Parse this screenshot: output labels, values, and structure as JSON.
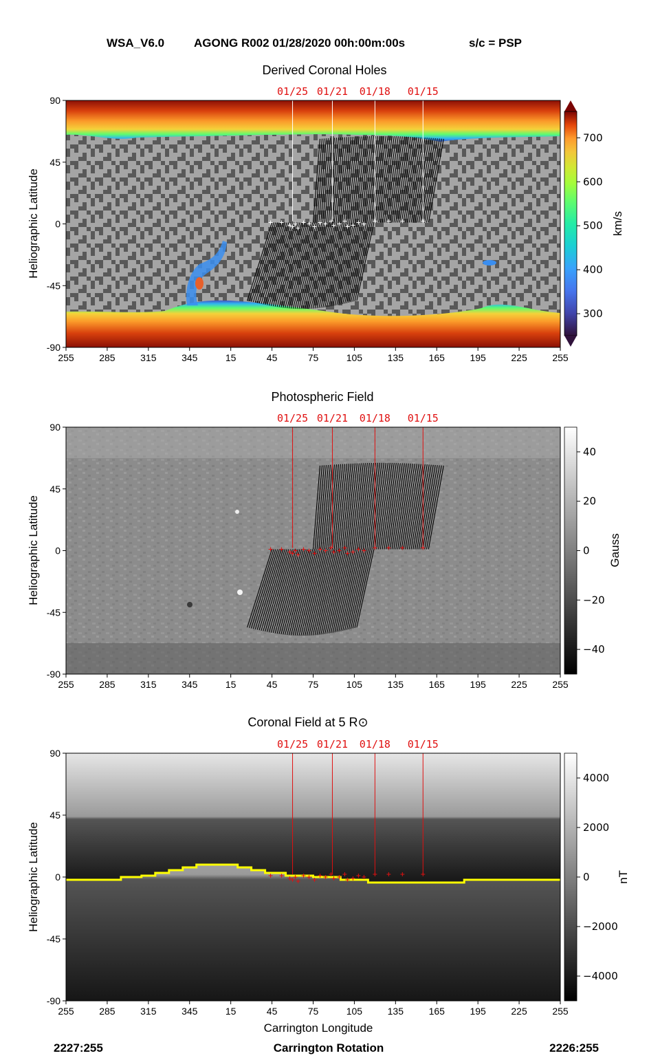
{
  "header": {
    "model": "WSA_V6.0",
    "run": "AGONG R002 01/28/2020 00h:00m:00s",
    "spacecraft": "s/c = PSP"
  },
  "footer": {
    "left_rotation": "2227:255",
    "center_label": "Carrington Rotation",
    "right_rotation": "2226:255"
  },
  "colors": {
    "date_marker": "#e01010",
    "neutral_line": "#ffff00",
    "coronal_hole_light": "#a6a6a6",
    "coronal_hole_dark": "#555555",
    "footpoint_lines": "#000000"
  },
  "chart_data": [
    {
      "type": "heatmap",
      "title": "Derived Coronal Holes",
      "ylabel": "Heliographic Latitude",
      "xlabel": "",
      "x_ticks": [
        "255",
        "285",
        "315",
        "345",
        "15",
        "45",
        "75",
        "105",
        "135",
        "165",
        "195",
        "225",
        "255"
      ],
      "y_ticks": [
        "90",
        "45",
        "0",
        "-45",
        "-90"
      ],
      "ylim": [
        -90,
        90
      ],
      "colorbar": {
        "label": "km/s",
        "ticks": [
          "700",
          "600",
          "500",
          "400",
          "300"
        ],
        "range": [
          250,
          760
        ],
        "colormap": "turbo",
        "extend": "both"
      },
      "date_markers": [
        {
          "label": "01/25",
          "longitude": 60
        },
        {
          "label": "01/21",
          "longitude": 89
        },
        {
          "label": "01/18",
          "longitude": 120
        },
        {
          "label": "01/15",
          "longitude": 155
        }
      ]
    },
    {
      "type": "heatmap",
      "title": "Photospheric Field",
      "ylabel": "Heliographic Latitude",
      "xlabel": "",
      "x_ticks": [
        "255",
        "285",
        "315",
        "345",
        "15",
        "45",
        "75",
        "105",
        "135",
        "165",
        "195",
        "225",
        "255"
      ],
      "y_ticks": [
        "90",
        "45",
        "0",
        "-45",
        "-90"
      ],
      "ylim": [
        -90,
        90
      ],
      "colorbar": {
        "label": "Gauss",
        "ticks": [
          "40",
          "20",
          "0",
          "−20",
          "−40"
        ],
        "range": [
          -50,
          50
        ],
        "colormap": "gray"
      },
      "date_markers": [
        {
          "label": "01/25",
          "longitude": 60
        },
        {
          "label": "01/21",
          "longitude": 89
        },
        {
          "label": "01/18",
          "longitude": 120
        },
        {
          "label": "01/15",
          "longitude": 155
        }
      ]
    },
    {
      "type": "heatmap",
      "title": "Coronal Field at 5 R⊙",
      "ylabel": "Heliographic Latitude",
      "xlabel": "Carrington Longitude",
      "x_ticks": [
        "255",
        "285",
        "315",
        "345",
        "15",
        "45",
        "75",
        "105",
        "135",
        "165",
        "195",
        "225",
        "255"
      ],
      "y_ticks": [
        "90",
        "45",
        "0",
        "-45",
        "-90"
      ],
      "ylim": [
        -90,
        90
      ],
      "colorbar": {
        "label": "nT",
        "ticks": [
          "4000",
          "2000",
          "0",
          "−2000",
          "−4000"
        ],
        "range": [
          -5000,
          5000
        ],
        "colormap": "gray"
      },
      "date_markers": [
        {
          "label": "01/25",
          "longitude": 60
        },
        {
          "label": "01/21",
          "longitude": 89
        },
        {
          "label": "01/18",
          "longitude": 120
        },
        {
          "label": "01/15",
          "longitude": 155
        }
      ],
      "neutral_line": {
        "longitude": [
          255,
          285,
          295,
          305,
          310,
          315,
          320,
          325,
          330,
          335,
          340,
          345,
          350,
          360,
          15,
          20,
          25,
          30,
          35,
          40,
          45,
          55,
          65,
          75,
          85,
          95,
          105,
          115,
          125,
          135,
          145,
          155,
          165,
          175,
          185,
          195,
          205,
          225,
          255
        ],
        "latitude": [
          -2,
          -2,
          0,
          0,
          1,
          1,
          3,
          3,
          5,
          5,
          7,
          7,
          9,
          9,
          9,
          7,
          7,
          5,
          5,
          3,
          3,
          1,
          1,
          0,
          0,
          -2,
          -2,
          -4,
          -4,
          -4,
          -4,
          -4,
          -4,
          -4,
          -2,
          -2,
          -2,
          -2,
          -2
        ]
      }
    }
  ]
}
